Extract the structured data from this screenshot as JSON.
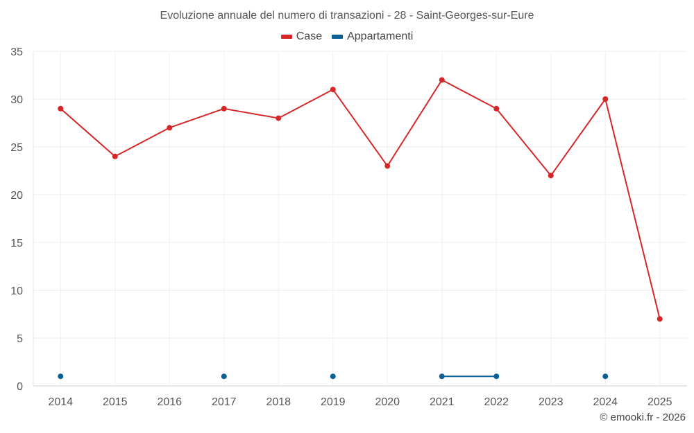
{
  "chart_data": {
    "type": "line",
    "title": "Evoluzione annuale del numero di transazioni - 28 - Saint-Georges-sur-Eure",
    "xlabel": "",
    "ylabel": "",
    "categories": [
      "2014",
      "2015",
      "2016",
      "2017",
      "2018",
      "2019",
      "2020",
      "2021",
      "2022",
      "2023",
      "2024",
      "2025"
    ],
    "ylim": [
      0,
      35
    ],
    "yticks": [
      0,
      5,
      10,
      15,
      20,
      25,
      30,
      35
    ],
    "grid": true,
    "legend_position": "top-center",
    "series": [
      {
        "name": "Case",
        "color": "#d62728",
        "values": [
          29,
          24,
          27,
          29,
          28,
          31,
          23,
          32,
          29,
          22,
          30,
          7
        ]
      },
      {
        "name": "Appartamenti",
        "color": "#0b6096",
        "values": [
          1,
          null,
          null,
          1,
          null,
          1,
          null,
          1,
          1,
          null,
          1,
          null
        ]
      }
    ]
  },
  "credit": "© emooki.fr - 2026"
}
